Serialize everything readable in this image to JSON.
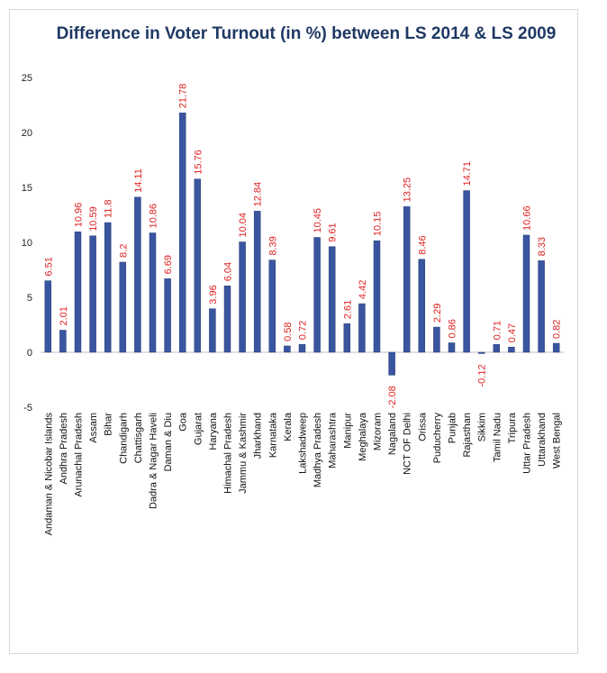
{
  "chart_data": {
    "type": "bar",
    "title": "Difference in Voter Turnout  (in %) between LS 2014 & LS 2009",
    "xlabel": "",
    "ylabel": "",
    "ylim": [
      -5,
      25
    ],
    "yticks": [
      -5,
      0,
      5,
      10,
      15,
      20,
      25
    ],
    "grid": false,
    "bar_color": "#3a559f",
    "label_color": "#e02020",
    "categories": [
      "Andaman & Nicobar Islands",
      "Andhra Pradesh",
      "Arunachal Pradesh",
      "Assam",
      "Bihar",
      "Chandigarh",
      "Chattisgarh",
      "Dadra & Nagar Haveli",
      "Daman & Diu",
      "Goa",
      "Gujarat",
      "Haryana",
      "Himachal Pradesh",
      "Jammu & Kashmir",
      "Jharkhand",
      "Karnataka",
      "Kerala",
      "Lakshadweep",
      "Madhya Pradesh",
      "Maharashtra",
      "Manipur",
      "Meghalaya",
      "Mizoram",
      "Nagaland",
      "NCT OF Delhi",
      "Orissa",
      "Puducherry",
      "Punjab",
      "Rajasthan",
      "Sikkim",
      "Tamil Nadu",
      "Tripura",
      "Uttar Pradesh",
      "Uttarakhand",
      "West Bengal"
    ],
    "values": [
      6.51,
      2.01,
      10.96,
      10.59,
      11.8,
      8.2,
      14.11,
      10.86,
      6.69,
      21.78,
      15.76,
      3.96,
      6.04,
      10.04,
      12.84,
      8.39,
      0.58,
      0.72,
      10.45,
      9.61,
      2.61,
      4.42,
      10.15,
      -2.08,
      13.25,
      8.46,
      2.29,
      0.86,
      14.71,
      -0.12,
      0.71,
      0.47,
      10.66,
      8.33,
      0.82
    ],
    "labels": [
      "6.51",
      "2.01",
      "10.96",
      "10.59",
      "11.8",
      "8.2",
      "14.11",
      "10.86",
      "6.69",
      "21.78",
      "15.76",
      "3.96",
      "6.04",
      "10.04",
      "12.84",
      "8.39",
      "0.58",
      "0.72",
      "10.45",
      "9.61",
      "2.61",
      "4.42",
      "10.15",
      "-2.08",
      "13.25",
      "8.46",
      "2.29",
      "0.86",
      "14.71",
      "-0.12",
      "0.71",
      "0.47",
      "10.66",
      "8.33",
      "0.82"
    ]
  }
}
